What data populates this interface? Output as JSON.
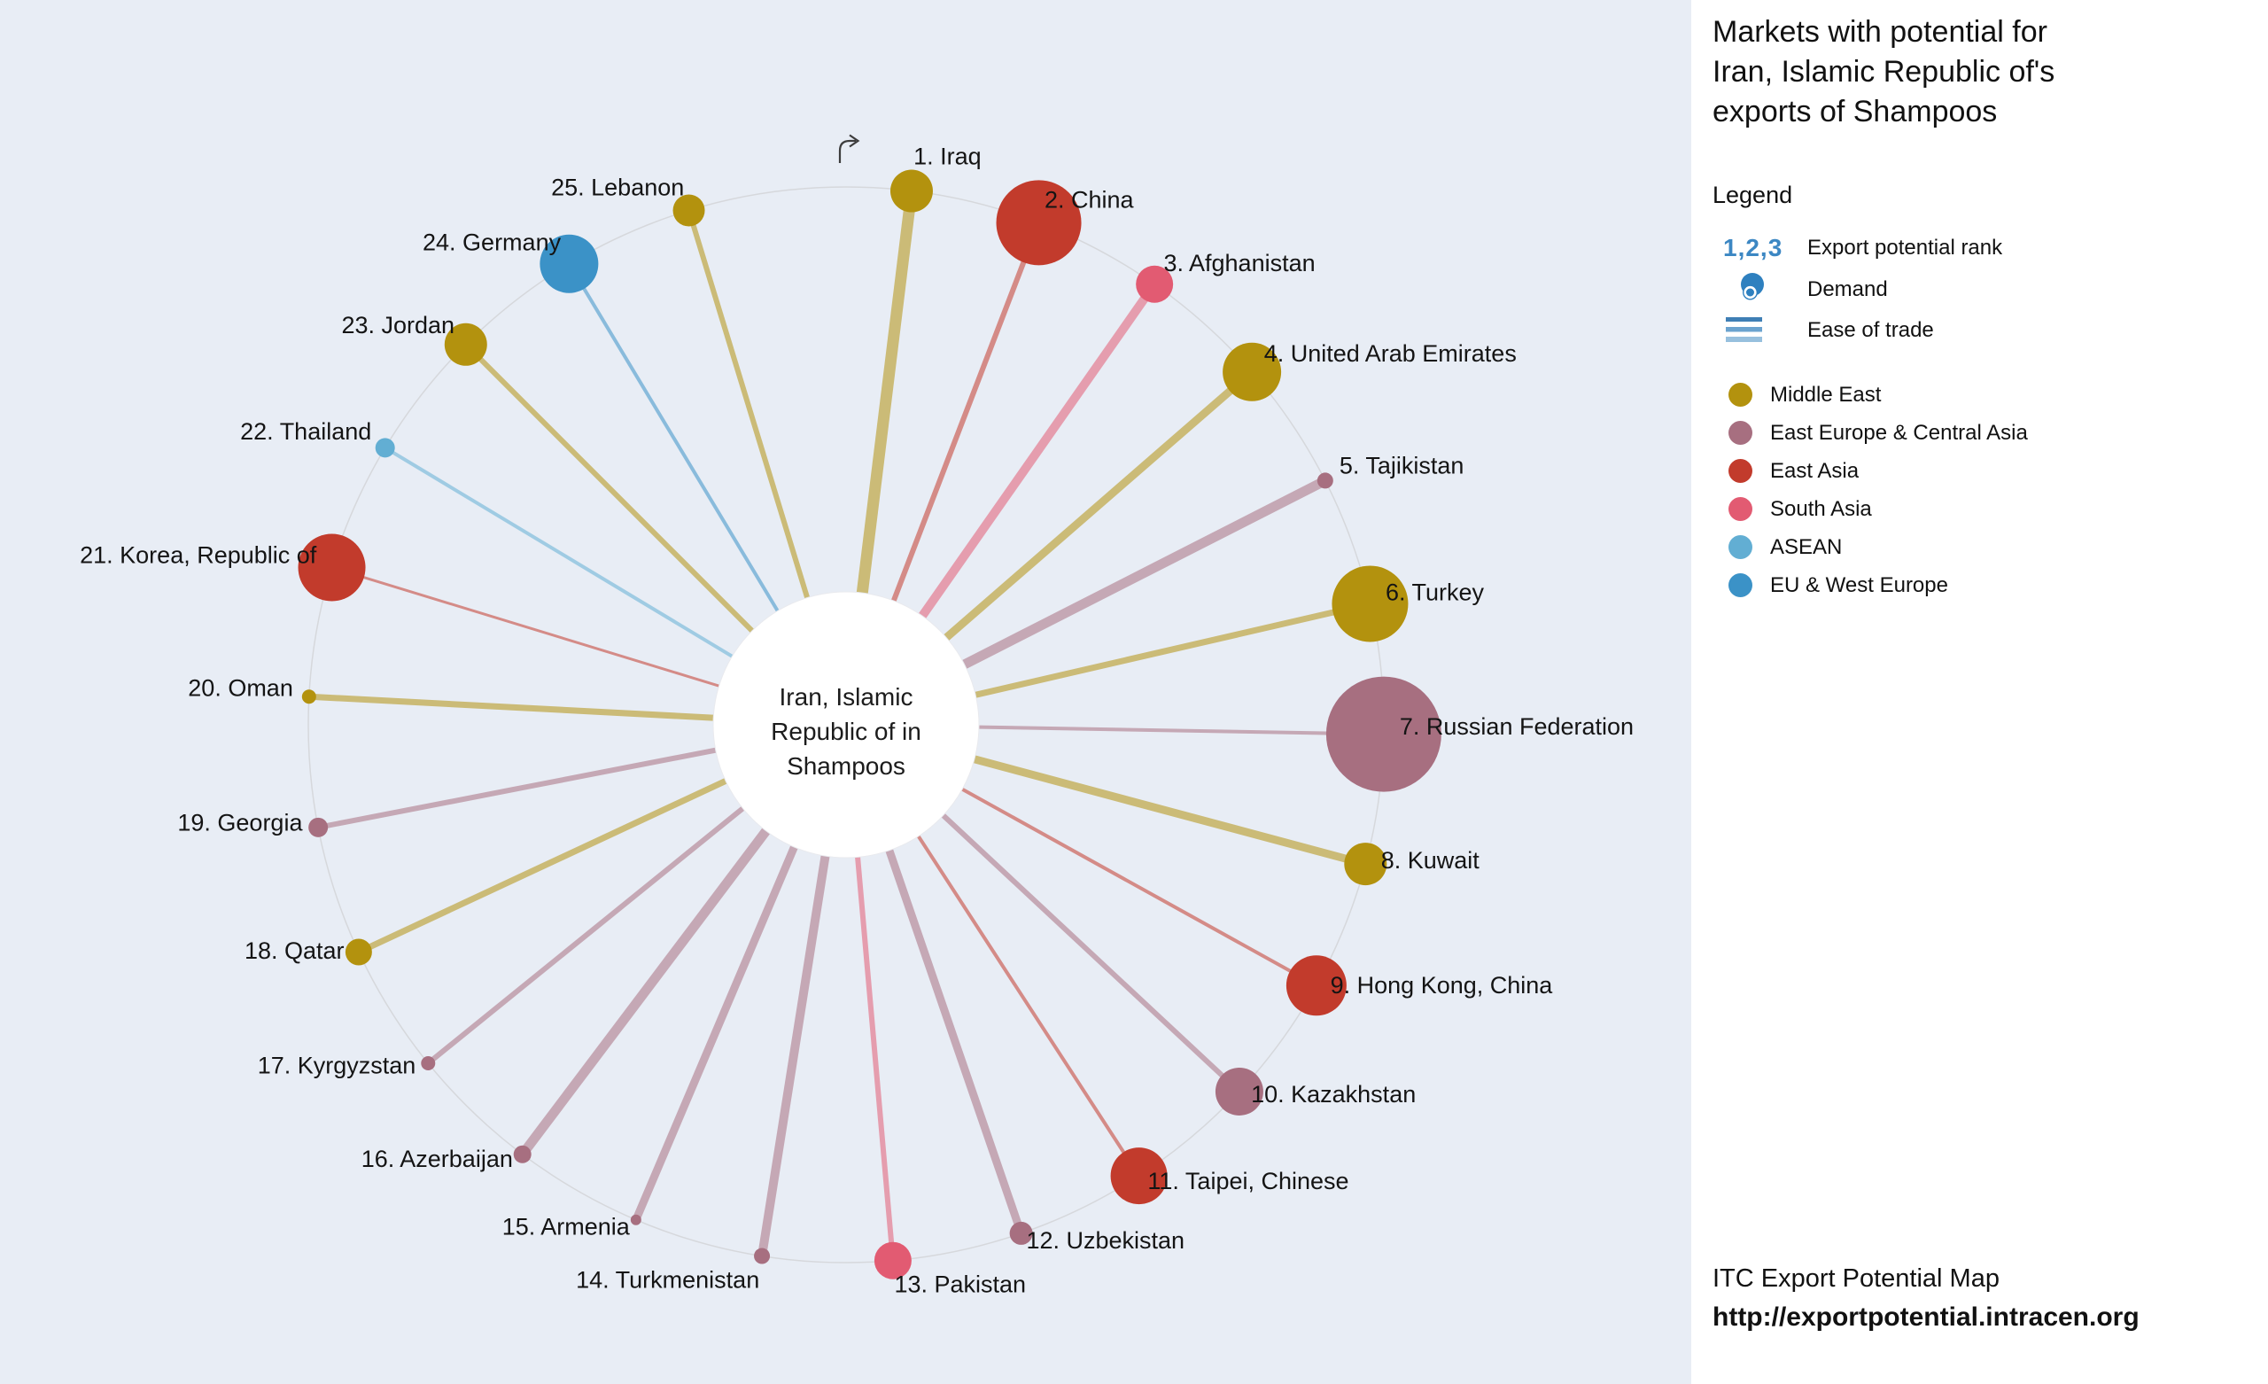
{
  "title_lines": [
    "Markets with potential for",
    "Iran, Islamic Republic of's",
    "exports of Shampoos"
  ],
  "legend": {
    "heading": "Legend",
    "rank_symbol": "1,2,3",
    "rank_label": "Export potential rank",
    "demand_label": "Demand",
    "ease_label": "Ease of trade",
    "accent_color": "#3c87c3",
    "regions": [
      {
        "label": "Middle East",
        "color": "#b3920e"
      },
      {
        "label": "East Europe & Central Asia",
        "color": "#a76f80"
      },
      {
        "label": "East Asia",
        "color": "#c23b2c"
      },
      {
        "label": "South Asia",
        "color": "#e25b72"
      },
      {
        "label": "ASEAN",
        "color": "#62aed3"
      },
      {
        "label": "EU & West Europe",
        "color": "#3b92c7"
      }
    ]
  },
  "footer": {
    "line1": "ITC Export Potential Map",
    "line2": "http://exportpotential.intracen.org"
  },
  "chart_data": {
    "type": "radial-bubble",
    "title": "Markets with potential for Iran, Islamic Republic of's exports of Shampoos",
    "center_label_lines": [
      "Iran, Islamic",
      "Republic of in",
      "Shampoos"
    ],
    "legend_position": "right",
    "bubble_size_meaning": "Demand",
    "spoke_width_meaning": "Ease of trade",
    "markets": [
      {
        "rank": 1,
        "name": "Iraq",
        "region": "Middle East",
        "bubble_r": 24,
        "spoke_w": 13
      },
      {
        "rank": 2,
        "name": "China",
        "region": "East Asia",
        "bubble_r": 48,
        "spoke_w": 6
      },
      {
        "rank": 3,
        "name": "Afghanistan",
        "region": "South Asia",
        "bubble_r": 21,
        "spoke_w": 10
      },
      {
        "rank": 4,
        "name": "United Arab Emirates",
        "region": "Middle East",
        "bubble_r": 33,
        "spoke_w": 9
      },
      {
        "rank": 5,
        "name": "Tajikistan",
        "region": "East Europe & Central Asia",
        "bubble_r": 9,
        "spoke_w": 11
      },
      {
        "rank": 6,
        "name": "Turkey",
        "region": "Middle East",
        "bubble_r": 43,
        "spoke_w": 7
      },
      {
        "rank": 7,
        "name": "Russian Federation",
        "region": "East Europe & Central Asia",
        "bubble_r": 65,
        "spoke_w": 4
      },
      {
        "rank": 8,
        "name": "Kuwait",
        "region": "Middle East",
        "bubble_r": 24,
        "spoke_w": 9
      },
      {
        "rank": 9,
        "name": "Hong Kong, China",
        "region": "East Asia",
        "bubble_r": 34,
        "spoke_w": 4
      },
      {
        "rank": 10,
        "name": "Kazakhstan",
        "region": "East Europe & Central Asia",
        "bubble_r": 27,
        "spoke_w": 6
      },
      {
        "rank": 11,
        "name": "Taipei, Chinese",
        "region": "East Asia",
        "bubble_r": 32,
        "spoke_w": 4
      },
      {
        "rank": 12,
        "name": "Uzbekistan",
        "region": "East Europe & Central Asia",
        "bubble_r": 13,
        "spoke_w": 9
      },
      {
        "rank": 13,
        "name": "Pakistan",
        "region": "South Asia",
        "bubble_r": 21,
        "spoke_w": 6
      },
      {
        "rank": 14,
        "name": "Turkmenistan",
        "region": "East Europe & Central Asia",
        "bubble_r": 9,
        "spoke_w": 10
      },
      {
        "rank": 15,
        "name": "Armenia",
        "region": "East Europe & Central Asia",
        "bubble_r": 6,
        "spoke_w": 9
      },
      {
        "rank": 16,
        "name": "Azerbaijan",
        "region": "East Europe & Central Asia",
        "bubble_r": 10,
        "spoke_w": 11
      },
      {
        "rank": 17,
        "name": "Kyrgyzstan",
        "region": "East Europe & Central Asia",
        "bubble_r": 8,
        "spoke_w": 6
      },
      {
        "rank": 18,
        "name": "Qatar",
        "region": "Middle East",
        "bubble_r": 15,
        "spoke_w": 7
      },
      {
        "rank": 19,
        "name": "Georgia",
        "region": "East Europe & Central Asia",
        "bubble_r": 11,
        "spoke_w": 6
      },
      {
        "rank": 20,
        "name": "Oman",
        "region": "Middle East",
        "bubble_r": 8,
        "spoke_w": 7
      },
      {
        "rank": 21,
        "name": "Korea, Republic of",
        "region": "East Asia",
        "bubble_r": 38,
        "spoke_w": 3
      },
      {
        "rank": 22,
        "name": "Thailand",
        "region": "ASEAN",
        "bubble_r": 11,
        "spoke_w": 4
      },
      {
        "rank": 23,
        "name": "Jordan",
        "region": "Middle East",
        "bubble_r": 24,
        "spoke_w": 6
      },
      {
        "rank": 24,
        "name": "Germany",
        "region": "EU & West Europe",
        "bubble_r": 33,
        "spoke_w": 4
      },
      {
        "rank": 25,
        "name": "Lebanon",
        "region": "Middle East",
        "bubble_r": 18,
        "spoke_w": 6
      }
    ]
  }
}
